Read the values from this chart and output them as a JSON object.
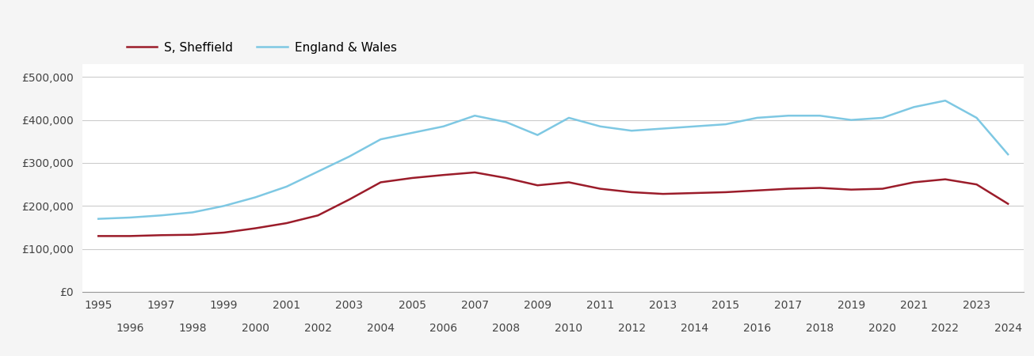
{
  "years": [
    1995,
    1996,
    1997,
    1998,
    1999,
    2000,
    2001,
    2002,
    2003,
    2004,
    2005,
    2006,
    2007,
    2008,
    2009,
    2010,
    2011,
    2012,
    2013,
    2014,
    2015,
    2016,
    2017,
    2018,
    2019,
    2020,
    2021,
    2022,
    2023,
    2024
  ],
  "sheffield": [
    130000,
    130000,
    132000,
    133000,
    138000,
    148000,
    160000,
    178000,
    215000,
    255000,
    265000,
    272000,
    278000,
    265000,
    248000,
    255000,
    240000,
    232000,
    228000,
    230000,
    232000,
    236000,
    240000,
    242000,
    238000,
    240000,
    255000,
    262000,
    250000,
    205000
  ],
  "england_wales": [
    170000,
    173000,
    178000,
    185000,
    200000,
    220000,
    245000,
    280000,
    315000,
    355000,
    370000,
    385000,
    410000,
    395000,
    365000,
    405000,
    385000,
    375000,
    380000,
    385000,
    390000,
    405000,
    410000,
    410000,
    400000,
    405000,
    430000,
    445000,
    405000,
    320000
  ],
  "sheffield_color": "#9b1c2a",
  "england_wales_color": "#7ec8e3",
  "background_color": "#f5f5f5",
  "plot_bg_color": "#ffffff",
  "grid_color": "#cccccc",
  "legend_sheffield": "S, Sheffield",
  "legend_england_wales": "England & Wales",
  "yticks": [
    0,
    100000,
    200000,
    300000,
    400000,
    500000
  ],
  "ylim": [
    0,
    530000
  ],
  "xlim": [
    1994.5,
    2024.5
  ]
}
